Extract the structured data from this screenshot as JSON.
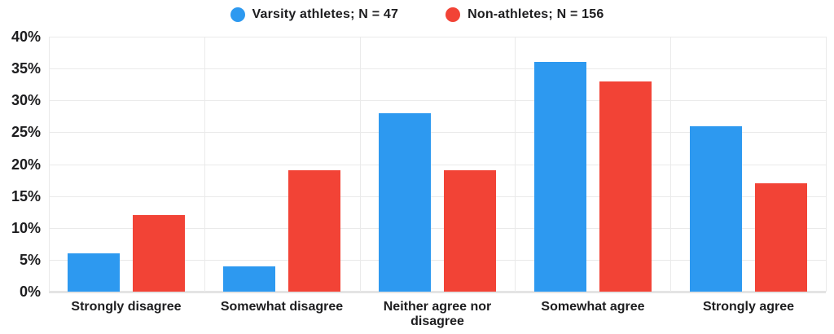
{
  "chart_data": {
    "type": "bar",
    "title": "",
    "xlabel": "",
    "ylabel": "",
    "categories": [
      "Strongly disagree",
      "Somewhat disagree",
      "Neither agree nor disagree",
      "Somewhat agree",
      "Strongly agree"
    ],
    "series": [
      {
        "name": "Varsity athletes; N = 47",
        "color": "#2D99F0",
        "values": [
          6,
          4,
          28,
          36,
          26
        ]
      },
      {
        "name": "Non-athletes; N = 156",
        "color": "#F24336",
        "values": [
          12,
          19,
          19,
          33,
          17
        ]
      }
    ],
    "ylim": [
      0,
      40
    ],
    "ytick_step": 5,
    "ytick_labels": [
      "0%",
      "5%",
      "10%",
      "15%",
      "20%",
      "25%",
      "30%",
      "35%",
      "40%"
    ],
    "grid": true,
    "legend_position": "top-center"
  },
  "colors": {
    "background": "#ffffff",
    "gridline": "#eaeaea",
    "axis_baseline": "#e4e4e4",
    "text": "#1d1d1f",
    "varsity_blue": "#2D99F0",
    "non_athlete_red": "#F24336"
  }
}
